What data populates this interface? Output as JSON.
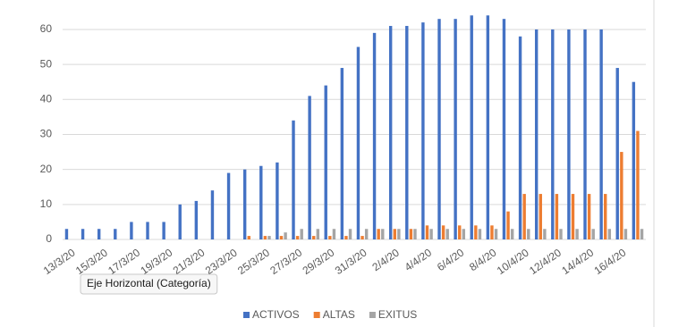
{
  "chart_data": {
    "type": "bar",
    "categories": [
      "13/3/20",
      null,
      "15/3/20",
      null,
      "17/3/20",
      null,
      "19/3/20",
      null,
      "21/3/20",
      null,
      "23/3/20",
      null,
      "25/3/20",
      null,
      "27/3/20",
      null,
      "29/3/20",
      null,
      "31/3/20",
      null,
      "2/4/20",
      null,
      "4/4/20",
      null,
      "6/4/20",
      null,
      "8/4/20",
      null,
      "10/4/20",
      null,
      "12/4/20",
      null,
      "14/4/20",
      null,
      "16/4/20",
      null
    ],
    "series": [
      {
        "name": "ACTIVOS",
        "color": "#4472c4",
        "values": [
          3,
          3,
          3,
          3,
          5,
          5,
          5,
          10,
          11,
          14,
          19,
          20,
          21,
          22,
          34,
          41,
          44,
          49,
          55,
          59,
          61,
          61,
          62,
          63,
          63,
          64,
          64,
          63,
          58,
          60,
          60,
          60,
          60,
          60,
          49,
          45
        ]
      },
      {
        "name": "ALTAS",
        "color": "#ed7d31",
        "values": [
          0,
          0,
          0,
          0,
          0,
          0,
          0,
          0,
          0,
          0,
          0,
          1,
          1,
          1,
          1,
          1,
          1,
          1,
          1,
          3,
          3,
          3,
          4,
          4,
          4,
          4,
          4,
          8,
          13,
          13,
          13,
          13,
          13,
          13,
          25,
          31
        ]
      },
      {
        "name": "EXITUS",
        "color": "#a5a5a5",
        "values": [
          0,
          0,
          0,
          0,
          0,
          0,
          0,
          0,
          0,
          0,
          0,
          0,
          1,
          2,
          3,
          3,
          3,
          3,
          3,
          3,
          3,
          3,
          3,
          3,
          3,
          3,
          3,
          3,
          3,
          3,
          3,
          3,
          3,
          3,
          3,
          3
        ]
      }
    ],
    "ylim": [
      0,
      68
    ],
    "yticks": [
      0,
      10,
      20,
      30,
      40,
      50,
      60
    ],
    "grid": true,
    "tooltip": "Eje Horizontal (Categoría)"
  }
}
